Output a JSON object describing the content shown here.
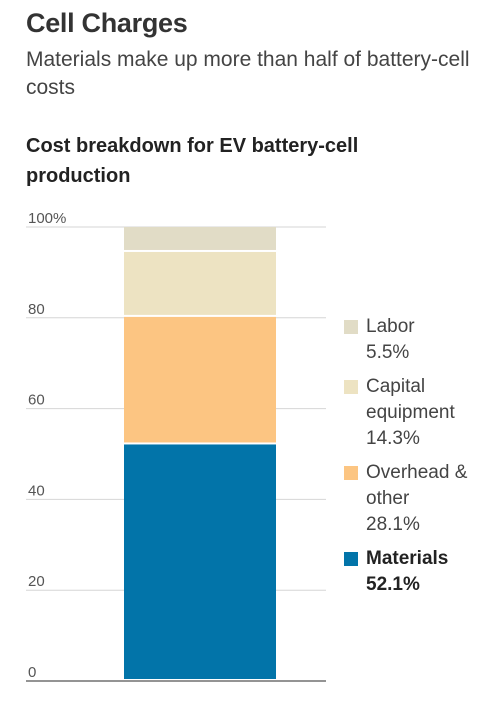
{
  "header": {
    "title": "Cell Charges",
    "subtitle": "Materials make up more than half of battery-cell costs"
  },
  "chart_data": {
    "type": "bar",
    "stacked": true,
    "title": "Cost breakdown for EV battery-cell production",
    "xlabel": "",
    "ylabel": "",
    "ylim": [
      0,
      100
    ],
    "yticks": [
      0,
      20,
      40,
      60,
      80,
      100
    ],
    "ytick_labels": [
      "0",
      "20",
      "40",
      "60",
      "80",
      "100%"
    ],
    "grid": true,
    "legend_position": "right",
    "series": [
      {
        "name": "Materials",
        "value": 52.1,
        "label": "52.1%",
        "color": "#0274a9",
        "bold": true
      },
      {
        "name": "Overhead & other",
        "value": 28.1,
        "label": "28.1%",
        "color": "#fcc582",
        "bold": false
      },
      {
        "name": "Capital equipment",
        "value": 14.3,
        "label": "14.3%",
        "color": "#ede3c2",
        "bold": false
      },
      {
        "name": "Labor",
        "value": 5.5,
        "label": "5.5%",
        "color": "#e1dcc6",
        "bold": false
      }
    ]
  }
}
